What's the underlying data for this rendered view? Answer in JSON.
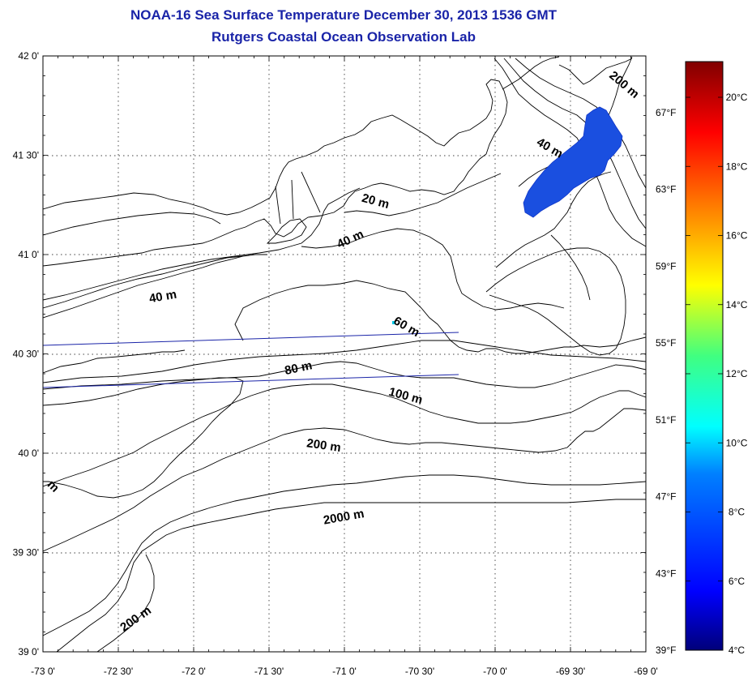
{
  "header": {
    "title": "NOAA-16 Sea Surface Temperature December 30, 2013 1536 GMT",
    "subtitle": "Rutgers Coastal Ocean Observation Lab"
  },
  "map": {
    "lon_range": [
      -73,
      -69
    ],
    "lat_range": [
      39,
      42
    ],
    "lon_labels": [
      "-73 0'",
      "-72 30'",
      "-72 0'",
      "-71 30'",
      "-71 0'",
      "-70 30'",
      "-70 0'",
      "-69 30'",
      "-69 0'"
    ],
    "lat_labels": [
      "42 0'",
      "41 30'",
      "41 0'",
      "40 30'",
      "40 0'",
      "39 30'",
      "39 0'"
    ],
    "fahrenheit_labels": [
      "67°F",
      "63°F",
      "59°F",
      "55°F",
      "51°F",
      "47°F",
      "43°F",
      "39°F"
    ],
    "grid": "dotted",
    "isobath_labels": [
      {
        "text": "200 m",
        "lon": -69.16,
        "lat": 41.84,
        "rotate": 40
      },
      {
        "text": "40 m",
        "lon": -69.65,
        "lat": 41.52,
        "rotate": 30
      },
      {
        "text": "20 m",
        "lon": -70.8,
        "lat": 41.25,
        "rotate": 15
      },
      {
        "text": "40 m",
        "lon": -70.95,
        "lat": 41.06,
        "rotate": -25
      },
      {
        "text": "40 m",
        "lon": -72.2,
        "lat": 40.77,
        "rotate": -10
      },
      {
        "text": "60 m",
        "lon": -70.6,
        "lat": 40.62,
        "rotate": 30
      },
      {
        "text": "80 m",
        "lon": -71.3,
        "lat": 40.41,
        "rotate": -12
      },
      {
        "text": "100 m",
        "lon": -70.6,
        "lat": 40.27,
        "rotate": 15
      },
      {
        "text": "200 m",
        "lon": -71.14,
        "lat": 40.02,
        "rotate": 8
      },
      {
        "text": "2000 m",
        "lon": -71.0,
        "lat": 39.66,
        "rotate": -10
      },
      {
        "text": "200 m",
        "lon": -72.37,
        "lat": 39.15,
        "rotate": -35
      },
      {
        "text": "m",
        "lon": -72.95,
        "lat": 39.82,
        "rotate": 45
      }
    ],
    "sst_patch": {
      "color": "#1a4fe0",
      "approx_temp_c": 7
    }
  },
  "colorbar": {
    "celsius_labels": [
      "20°C",
      "18°C",
      "16°C",
      "14°C",
      "12°C",
      "10°C",
      "8°C",
      "6°C",
      "4°C"
    ],
    "range_c": [
      4,
      21
    ]
  }
}
